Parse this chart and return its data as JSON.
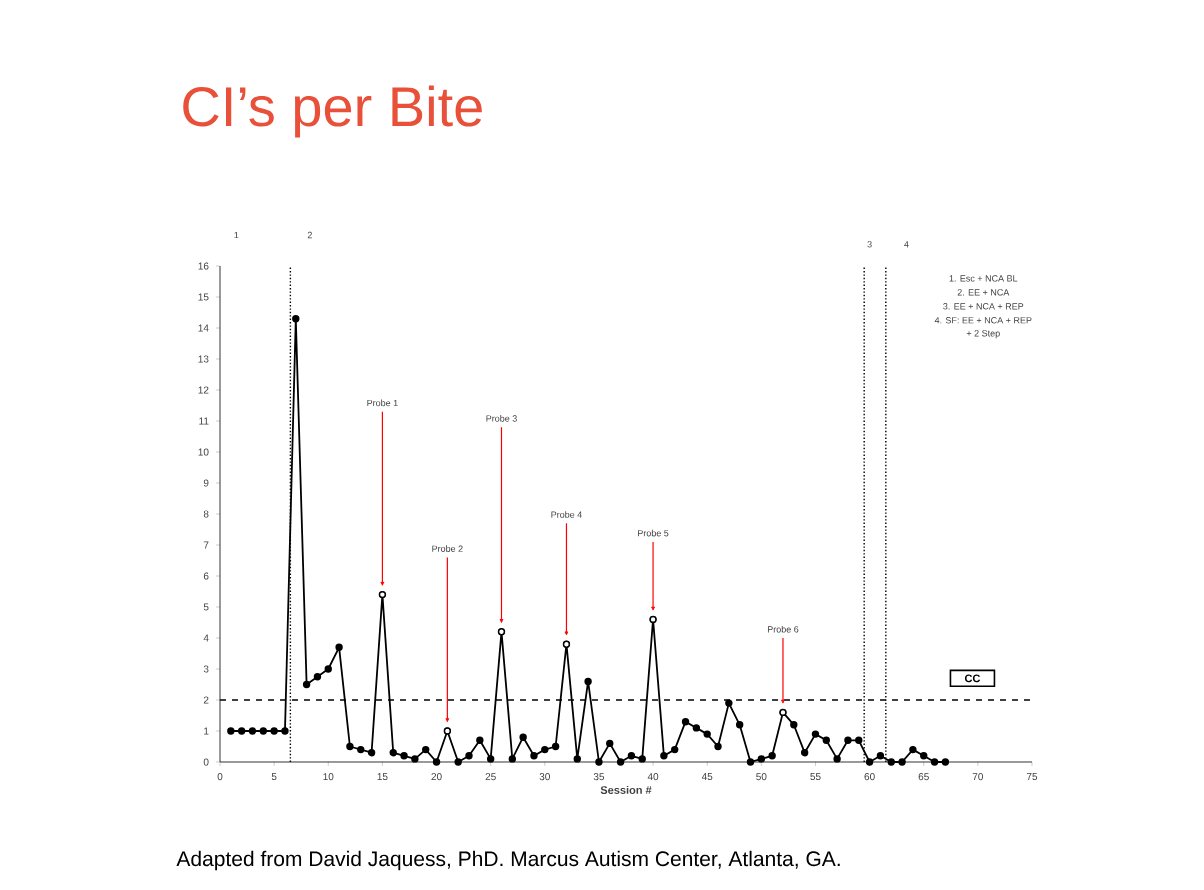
{
  "chart_data": {
    "type": "line",
    "title": "CI’s per Bite",
    "xlabel": "Session #",
    "xlim": [
      0,
      75
    ],
    "xticks": [
      0,
      5,
      10,
      15,
      20,
      25,
      30,
      35,
      40,
      45,
      50,
      55,
      60,
      65,
      70,
      75
    ],
    "ylim": [
      0,
      16
    ],
    "yticks": [
      0,
      1,
      2,
      3,
      4,
      5,
      6,
      7,
      8,
      9,
      10,
      11,
      12,
      13,
      14,
      15,
      16
    ],
    "marker": "circle",
    "line_style": "solid",
    "grid": false,
    "series": [
      {
        "color": "#000000",
        "x": [
          1,
          2,
          3,
          4,
          5,
          6,
          7,
          8,
          9,
          10,
          11,
          12,
          13,
          14,
          15,
          16,
          17,
          18,
          19,
          20,
          21,
          22,
          23,
          24,
          25,
          26,
          27,
          28,
          29,
          30,
          31,
          32,
          33,
          34,
          35,
          36,
          37,
          38,
          39,
          40,
          41,
          42,
          43,
          44,
          45,
          46,
          47,
          48,
          49,
          50,
          51,
          52,
          53,
          54,
          55,
          56,
          57,
          58,
          59,
          60,
          61,
          62,
          63,
          64,
          65,
          66,
          67
        ],
        "values": [
          1,
          1,
          1,
          1,
          1,
          1,
          14.3,
          2.5,
          2.75,
          3.0,
          3.7,
          0.5,
          0.4,
          0.3,
          5.4,
          0.3,
          0.2,
          0.1,
          0.4,
          0,
          1.0,
          0,
          0.2,
          0.7,
          0.1,
          4.2,
          0.1,
          0.8,
          0.2,
          0.4,
          0.5,
          3.8,
          0.1,
          2.6,
          0,
          0.6,
          0,
          0.2,
          0.1,
          4.6,
          0.2,
          0.4,
          1.3,
          1.1,
          0.9,
          0.5,
          1.9,
          1.2,
          0,
          0.1,
          0.2,
          1.6,
          1.2,
          0.3,
          0.9,
          0.7,
          0.1,
          0.7,
          0.7,
          0,
          0.2,
          0,
          0,
          0.4,
          0.2,
          0,
          0
        ]
      },
      {
        "type": "scatter",
        "color": "#ffffff",
        "x": [
          15,
          21,
          26,
          32,
          40,
          52
        ],
        "values": [
          5.4,
          1.0,
          4.2,
          3.8,
          4.6,
          1.6
        ]
      }
    ],
    "ref_lines": [
      {
        "axis": "x",
        "value": 6.5,
        "line_style": "dotted"
      },
      {
        "axis": "x",
        "value": 59.5,
        "line_style": "dotted"
      },
      {
        "axis": "x",
        "value": 61.5,
        "line_style": "dotted"
      },
      {
        "axis": "y",
        "value": 2,
        "line_style": "dashed"
      }
    ],
    "annotations": [
      {
        "text": "Probe 1",
        "x": 15,
        "y": 5.4
      },
      {
        "text": "Probe 2",
        "x": 21,
        "y": 1.0
      },
      {
        "text": "Probe 3",
        "x": 26,
        "y": 4.2
      },
      {
        "text": "Probe 4",
        "x": 32,
        "y": 3.8
      },
      {
        "text": "Probe 5",
        "x": 40,
        "y": 4.6
      },
      {
        "text": "Probe 6",
        "x": 52,
        "y": 1.6
      },
      "1",
      "2",
      "3",
      "4",
      "1. Esc + NCA BL",
      "2. EE + NCA",
      "3.  EE + NCA + REP",
      "4. SF: EE + NCA + REP",
      "+ 2 Step",
      "CC",
      "Adapted from David Jaquess, PhD.  Marcus  Autism Center, Atlanta, GA."
    ]
  }
}
